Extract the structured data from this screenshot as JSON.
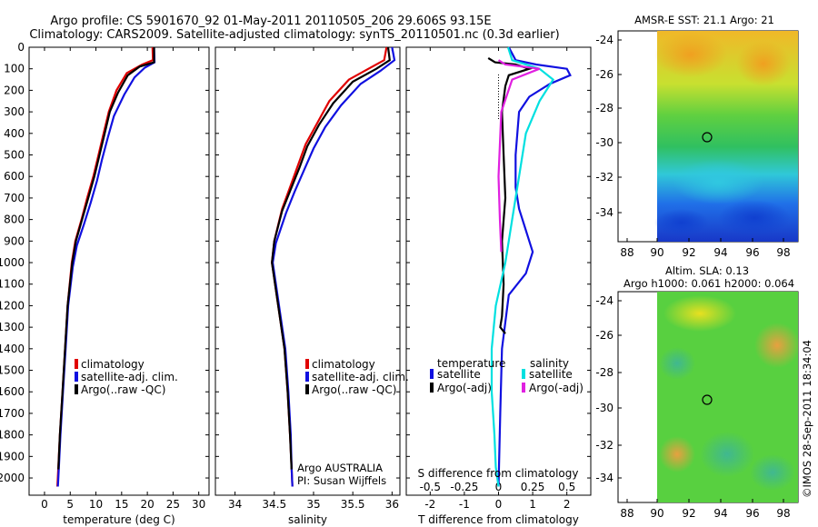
{
  "header": {
    "line1": "Argo profile: CS 5901670_92 01-May-2011 20110505_206 29.606S 93.15E",
    "line2": "Climatology: CARS2009. Satellite-adjusted climatology: synTS_20110501.nc (0.3d earlier)"
  },
  "colors": {
    "climatology": "#e00000",
    "satellite": "#1010e0",
    "argo": "#000000",
    "sat_salinity": "#00e0e0",
    "argo_salinity": "#e020e0"
  },
  "chart_data": [
    {
      "type": "line",
      "xlabel": "temperature (deg C)",
      "ylabel": "",
      "xlim": [
        -3,
        32
      ],
      "ylim": [
        2080,
        0
      ],
      "xticks": [
        0,
        5,
        10,
        15,
        20,
        25,
        30
      ],
      "yticks": [
        0,
        100,
        200,
        300,
        400,
        500,
        600,
        700,
        800,
        900,
        1000,
        1100,
        1200,
        1300,
        1400,
        1500,
        1600,
        1700,
        1800,
        1900,
        2000
      ],
      "legend": {
        "position": "bottom-right",
        "entries": [
          "climatology",
          "satellite-adj. clim.",
          "Argo(..raw -QC)"
        ]
      },
      "series": [
        {
          "name": "climatology",
          "x": [
            21,
            21.1,
            19,
            16,
            14,
            12.5,
            11.5,
            10.5,
            9.5,
            8.3,
            7.2,
            6,
            5.3,
            4.5,
            4,
            3.5,
            3,
            2.7,
            2.5
          ],
          "y": [
            0,
            60,
            80,
            120,
            200,
            300,
            400,
            500,
            600,
            700,
            800,
            900,
            1000,
            1200,
            1400,
            1600,
            1800,
            1950,
            2040
          ]
        },
        {
          "name": "satellite-adj. clim.",
          "x": [
            21.3,
            21.4,
            19.5,
            17.5,
            15.5,
            13.5,
            12.3,
            11.2,
            10.2,
            9,
            7.7,
            6.3,
            5.5,
            4.6,
            4.1,
            3.6,
            3.1,
            2.8,
            2.6
          ],
          "y": [
            0,
            70,
            95,
            140,
            220,
            320,
            420,
            520,
            620,
            720,
            820,
            920,
            1020,
            1200,
            1400,
            1600,
            1800,
            1950,
            2040
          ]
        },
        {
          "name": "Argo(..raw -QC)",
          "x": [
            21.3,
            21.3,
            18.5,
            16.2,
            14.3,
            12.7,
            11.7,
            10.7,
            9.7,
            8.5,
            7.3,
            6.1,
            5.4,
            4.5,
            4,
            3.5,
            3,
            2.7
          ],
          "y": [
            0,
            70,
            90,
            130,
            210,
            300,
            400,
            500,
            600,
            700,
            800,
            900,
            1000,
            1200,
            1400,
            1600,
            1800,
            1960
          ]
        }
      ]
    },
    {
      "type": "line",
      "xlabel": "salinity",
      "ylabel": "",
      "xlim": [
        33.75,
        36.1
      ],
      "ylim": [
        2080,
        0
      ],
      "xticks": [
        34,
        34.5,
        35,
        35.5,
        36
      ],
      "xticklabels": [
        "34",
        "34.5",
        "35",
        "35.5",
        "36"
      ],
      "legend": {
        "position": "bottom-right",
        "entries": [
          "climatology",
          "satellite-adj. clim.",
          "Argo(..raw -QC)"
        ]
      },
      "annotations": [
        "Argo AUSTRALIA",
        "PI: Susan Wijffels"
      ],
      "series": [
        {
          "name": "climatology",
          "x": [
            35.93,
            35.9,
            35.7,
            35.45,
            35.2,
            35.05,
            34.9,
            34.8,
            34.7,
            34.6,
            34.5,
            34.47,
            34.55,
            34.63,
            34.67,
            34.7,
            34.72,
            34.73
          ],
          "y": [
            0,
            60,
            100,
            150,
            250,
            350,
            450,
            550,
            650,
            750,
            900,
            1000,
            1200,
            1400,
            1600,
            1800,
            1950,
            2040
          ]
        },
        {
          "name": "satellite-adj. clim.",
          "x": [
            36,
            36.03,
            35.85,
            35.6,
            35.35,
            35.15,
            35,
            34.88,
            34.76,
            34.65,
            34.52,
            34.48,
            34.56,
            34.64,
            34.68,
            34.71,
            34.72,
            34.73
          ],
          "y": [
            0,
            60,
            110,
            170,
            270,
            370,
            470,
            570,
            670,
            770,
            910,
            1000,
            1200,
            1400,
            1600,
            1800,
            1950,
            2040
          ]
        },
        {
          "name": "Argo(..raw -QC)",
          "x": [
            35.95,
            35.97,
            35.8,
            35.5,
            35.25,
            35.07,
            34.92,
            34.82,
            34.71,
            34.6,
            34.5,
            34.47,
            34.55,
            34.63,
            34.67,
            34.7,
            34.72
          ],
          "y": [
            0,
            60,
            100,
            160,
            260,
            360,
            460,
            560,
            660,
            760,
            900,
            1000,
            1200,
            1400,
            1600,
            1800,
            1960
          ]
        }
      ]
    },
    {
      "type": "line",
      "xlabel": "T difference from climatology",
      "secondary_xlabel": "S difference from climatology",
      "xlim": [
        -2.7,
        2.7
      ],
      "ylim": [
        2080,
        0
      ],
      "xticks": [
        -2,
        -1,
        0,
        1,
        2
      ],
      "secondary_xticks": [
        -0.5,
        -0.25,
        0,
        0.25,
        0.5
      ],
      "legend": {
        "position": "bottom",
        "groups": [
          "temperature",
          "salinity"
        ],
        "entries": [
          "satellite",
          "Argo(-adj)",
          "satellite",
          "Argo(-adj)"
        ]
      },
      "series": [
        {
          "name": "temperature satellite",
          "x": [
            0.3,
            0.5,
            1.1,
            2.0,
            2.1,
            1.5,
            0.9,
            0.6,
            0.5,
            0.5,
            0.6,
            0.8,
            1.0,
            0.8,
            0.3,
            0.1,
            0.05,
            0
          ],
          "y": [
            0,
            60,
            80,
            100,
            130,
            170,
            230,
            300,
            500,
            650,
            750,
            850,
            950,
            1050,
            1150,
            1400,
            1700,
            2040
          ]
        },
        {
          "name": "temperature Argo(-adj)",
          "x": [
            -0.3,
            -0.1,
            0.5,
            0.9,
            0.3,
            0.2,
            0.1,
            0.15,
            0.2,
            0.1,
            0.15,
            0.1,
            0.05,
            0.2
          ],
          "y": [
            50,
            70,
            80,
            100,
            130,
            180,
            300,
            500,
            700,
            900,
            1100,
            1250,
            1300,
            1330
          ]
        },
        {
          "name": "salinity satellite",
          "x": [
            0.07,
            0.1,
            0.3,
            0.4,
            0.3,
            0.2,
            0.15,
            0.1,
            0.05,
            -0.02,
            -0.05,
            -0.05,
            -0.03,
            -0.02,
            0
          ],
          "y": [
            0,
            60,
            100,
            150,
            250,
            400,
            600,
            800,
            1000,
            1200,
            1400,
            1600,
            1800,
            1950,
            2040
          ]
        },
        {
          "name": "salinity Argo(-adj)",
          "x": [
            0,
            0.05,
            0.3,
            0.1,
            0.02,
            0,
            0.01,
            0.02
          ],
          "y": [
            60,
            80,
            100,
            150,
            300,
            600,
            800,
            950
          ]
        }
      ]
    }
  ],
  "maps": [
    {
      "title": "AMSR-E SST: 21.1  Argo: 21",
      "xticks": [
        "88",
        "90",
        "92",
        "94",
        "96",
        "98"
      ],
      "yticks": [
        "-24",
        "-26",
        "-28",
        "-30",
        "-32",
        "-34"
      ]
    },
    {
      "title_line1": "Altim. SLA: 0.13",
      "title_line2": "Argo h1000: 0.061 h2000: 0.064",
      "xticks": [
        "88",
        "90",
        "92",
        "94",
        "96",
        "98"
      ],
      "yticks": [
        "-24",
        "-26",
        "-28",
        "-30",
        "-32",
        "-34"
      ]
    }
  ],
  "credit": "©IMOS 28-Sep-2011 18:34:04"
}
